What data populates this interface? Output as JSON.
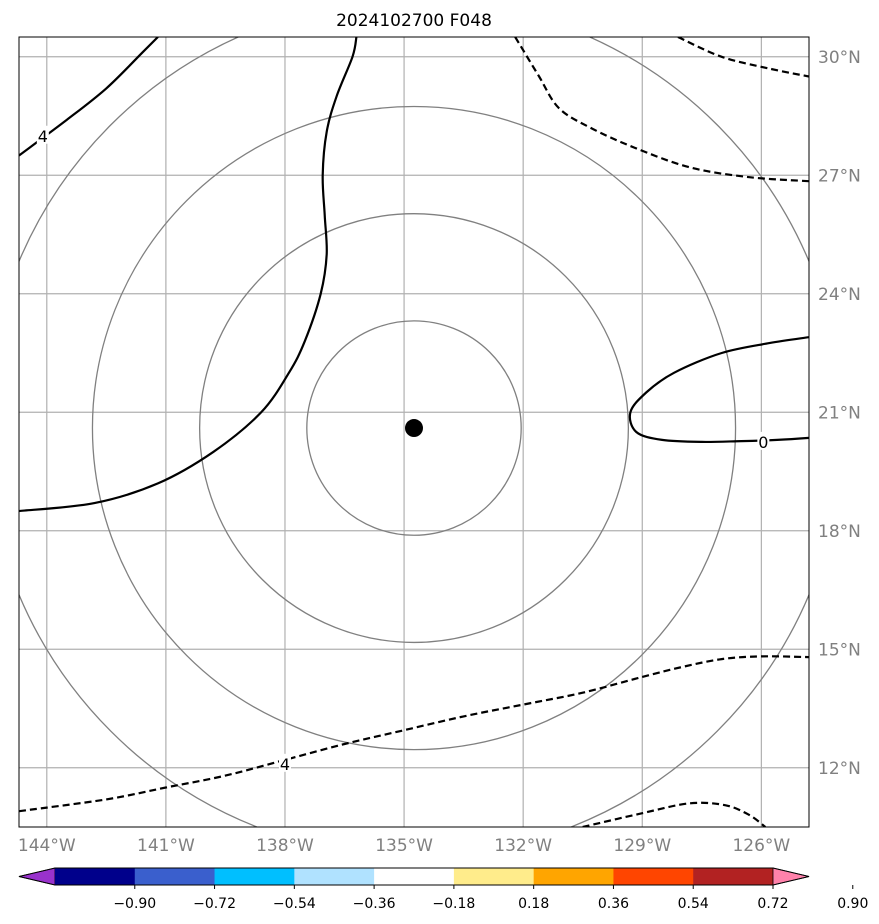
{
  "title": "2024102700 F048",
  "chart_data": {
    "type": "contour",
    "title": "2024102700 F048",
    "projection_note": "lat-lon map, storm-centered",
    "xlim": [
      -144.7,
      -124.8
    ],
    "ylim": [
      10.5,
      30.5
    ],
    "x_ticks": [
      {
        "value": -144,
        "label": "144°W"
      },
      {
        "value": -141,
        "label": "141°W"
      },
      {
        "value": -138,
        "label": "138°W"
      },
      {
        "value": -135,
        "label": "135°W"
      },
      {
        "value": -132,
        "label": "132°W"
      },
      {
        "value": -129,
        "label": "129°W"
      },
      {
        "value": -126,
        "label": "126°W"
      }
    ],
    "y_ticks": [
      {
        "value": 12,
        "label": "12°N"
      },
      {
        "value": 15,
        "label": "15°N"
      },
      {
        "value": 18,
        "label": "18°N"
      },
      {
        "value": 21,
        "label": "21°N"
      },
      {
        "value": 24,
        "label": "24°N"
      },
      {
        "value": 27,
        "label": "27°N"
      },
      {
        "value": 30,
        "label": "30°N"
      }
    ],
    "grid": true,
    "center": {
      "lon": -134.75,
      "lat": 20.6
    },
    "range_rings_deg": [
      2.7,
      5.4,
      8.1,
      10.8
    ],
    "ring_color": "#808080",
    "contours": [
      {
        "level": "4",
        "style": "solid",
        "label_at": {
          "lon": -144.1,
          "lat": 28.0
        },
        "points": [
          [
            -144.7,
            27.5
          ],
          [
            -143.5,
            28.4
          ],
          [
            -142.5,
            29.2
          ],
          [
            -141.6,
            30.1
          ],
          [
            -141.2,
            30.5
          ]
        ]
      },
      {
        "level": "",
        "style": "solid",
        "points": [
          [
            -136.2,
            30.5
          ],
          [
            -136.3,
            30.0
          ],
          [
            -136.7,
            29.0
          ],
          [
            -136.95,
            28.1
          ],
          [
            -137.05,
            27.0
          ],
          [
            -137.0,
            26.0
          ],
          [
            -136.95,
            25.0
          ],
          [
            -137.1,
            24.0
          ],
          [
            -137.5,
            22.8
          ],
          [
            -137.9,
            22.0
          ],
          [
            -138.6,
            21.0
          ],
          [
            -139.8,
            20.0
          ],
          [
            -141.2,
            19.2
          ],
          [
            -142.8,
            18.7
          ],
          [
            -144.7,
            18.5
          ]
        ]
      },
      {
        "level": "0",
        "style": "solid",
        "label_at": {
          "lon": -125.95,
          "lat": 20.25
        },
        "points": [
          [
            -124.8,
            22.9
          ],
          [
            -125.8,
            22.75
          ],
          [
            -127.0,
            22.5
          ],
          [
            -128.2,
            22.0
          ],
          [
            -128.9,
            21.5
          ],
          [
            -129.3,
            21.0
          ],
          [
            -129.15,
            20.5
          ],
          [
            -128.5,
            20.3
          ],
          [
            -127.5,
            20.25
          ],
          [
            -126.5,
            20.27
          ],
          [
            -125.6,
            20.3
          ],
          [
            -124.8,
            20.35
          ]
        ]
      },
      {
        "level": "",
        "style": "dashed",
        "points": [
          [
            -132.2,
            30.5
          ],
          [
            -131.6,
            29.5
          ],
          [
            -131.1,
            28.7
          ],
          [
            -130.3,
            28.2
          ],
          [
            -129.2,
            27.7
          ],
          [
            -127.8,
            27.2
          ],
          [
            -126.3,
            26.95
          ],
          [
            -124.8,
            26.85
          ]
        ]
      },
      {
        "level": "",
        "style": "dashed",
        "points": [
          [
            -128.1,
            30.5
          ],
          [
            -127.0,
            30.0
          ],
          [
            -125.8,
            29.7
          ],
          [
            -124.8,
            29.5
          ]
        ]
      },
      {
        "level": "4",
        "style": "dashed",
        "label_at": {
          "lon": -138.0,
          "lat": 12.1
        },
        "points": [
          [
            -144.7,
            10.9
          ],
          [
            -142.5,
            11.2
          ],
          [
            -141.0,
            11.5
          ],
          [
            -139.5,
            11.8
          ],
          [
            -138.0,
            12.2
          ],
          [
            -136.5,
            12.6
          ],
          [
            -135.0,
            12.95
          ],
          [
            -133.5,
            13.3
          ],
          [
            -132.0,
            13.6
          ],
          [
            -130.5,
            13.9
          ],
          [
            -129.0,
            14.3
          ],
          [
            -128.0,
            14.55
          ],
          [
            -127.0,
            14.75
          ],
          [
            -126.0,
            14.82
          ],
          [
            -124.8,
            14.8
          ]
        ]
      },
      {
        "level": "",
        "style": "dashed",
        "points": [
          [
            -130.5,
            10.5
          ],
          [
            -129.0,
            10.85
          ],
          [
            -127.8,
            11.1
          ],
          [
            -126.9,
            11.05
          ],
          [
            -126.3,
            10.8
          ],
          [
            -125.9,
            10.5
          ]
        ]
      }
    ],
    "colorbar": {
      "ticks": [
        "−0.90",
        "−0.72",
        "−0.54",
        "−0.36",
        "−0.18",
        "0.18",
        "0.36",
        "0.54",
        "0.72",
        "0.90"
      ],
      "colors": [
        "#9932cc",
        "#00008b",
        "#3a5fcd",
        "#00bfff",
        "#b0e2ff",
        "#ffffff",
        "#ffec8b",
        "#ffa500",
        "#ff4500",
        "#b22222",
        "#ff82ab"
      ],
      "extend": "both"
    }
  }
}
